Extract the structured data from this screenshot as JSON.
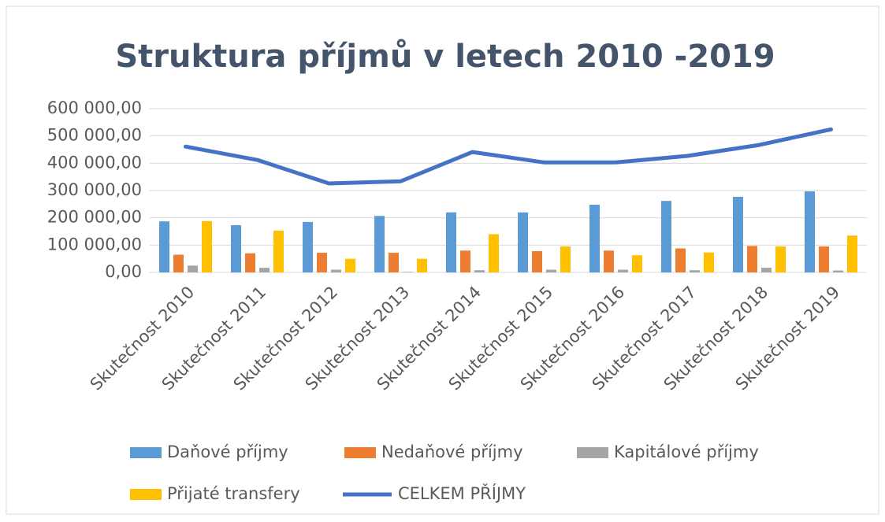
{
  "chart_data": {
    "type": "bar_line",
    "title": "Struktura příjmů v letech 2010 -2019",
    "categories": [
      "Skutečnost 2010",
      "Skutečnost 2011",
      "Skutečnost 2012",
      "Skutečnost 2013",
      "Skutečnost 2014",
      "Skutečnost 2015",
      "Skutečnost 2016",
      "Skutečnost 2017",
      "Skutečnost 2018",
      "Skutečnost 2019"
    ],
    "series": [
      {
        "name": "Daňové příjmy",
        "type": "bar",
        "color": "#5b9bd5",
        "values": [
          187000,
          173000,
          185000,
          207000,
          220000,
          220000,
          248000,
          262000,
          277000,
          297000
        ]
      },
      {
        "name": "Nedaňové příjmy",
        "type": "bar",
        "color": "#ed7d31",
        "values": [
          65000,
          70000,
          72000,
          72000,
          80000,
          78000,
          80000,
          88000,
          97000,
          95000
        ]
      },
      {
        "name": "Kapitálové příjmy",
        "type": "bar",
        "color": "#a5a5a5",
        "values": [
          25000,
          17000,
          10000,
          2000,
          8000,
          10000,
          10000,
          8000,
          17000,
          7000
        ]
      },
      {
        "name": "Přijaté transfery",
        "type": "bar",
        "color": "#ffc000",
        "values": [
          188000,
          153000,
          50000,
          50000,
          140000,
          95000,
          63000,
          73000,
          95000,
          135000
        ]
      },
      {
        "name": "CELKEM PŘÍJMY",
        "type": "line",
        "color": "#4472c4",
        "values": [
          461000,
          412000,
          326000,
          334000,
          441000,
          403000,
          403000,
          427000,
          467000,
          524000
        ]
      }
    ],
    "ylim": [
      0,
      600000
    ],
    "yticks": [
      {
        "value": 0,
        "label": "0,00"
      },
      {
        "value": 100000,
        "label": "100 000,00"
      },
      {
        "value": 200000,
        "label": "200 000,00"
      },
      {
        "value": 300000,
        "label": "300 000,00"
      },
      {
        "value": 400000,
        "label": "400 000,00"
      },
      {
        "value": 500000,
        "label": "500 000,00"
      },
      {
        "value": 600000,
        "label": "600 000,00"
      }
    ],
    "grid": true,
    "legend": "bottom"
  }
}
